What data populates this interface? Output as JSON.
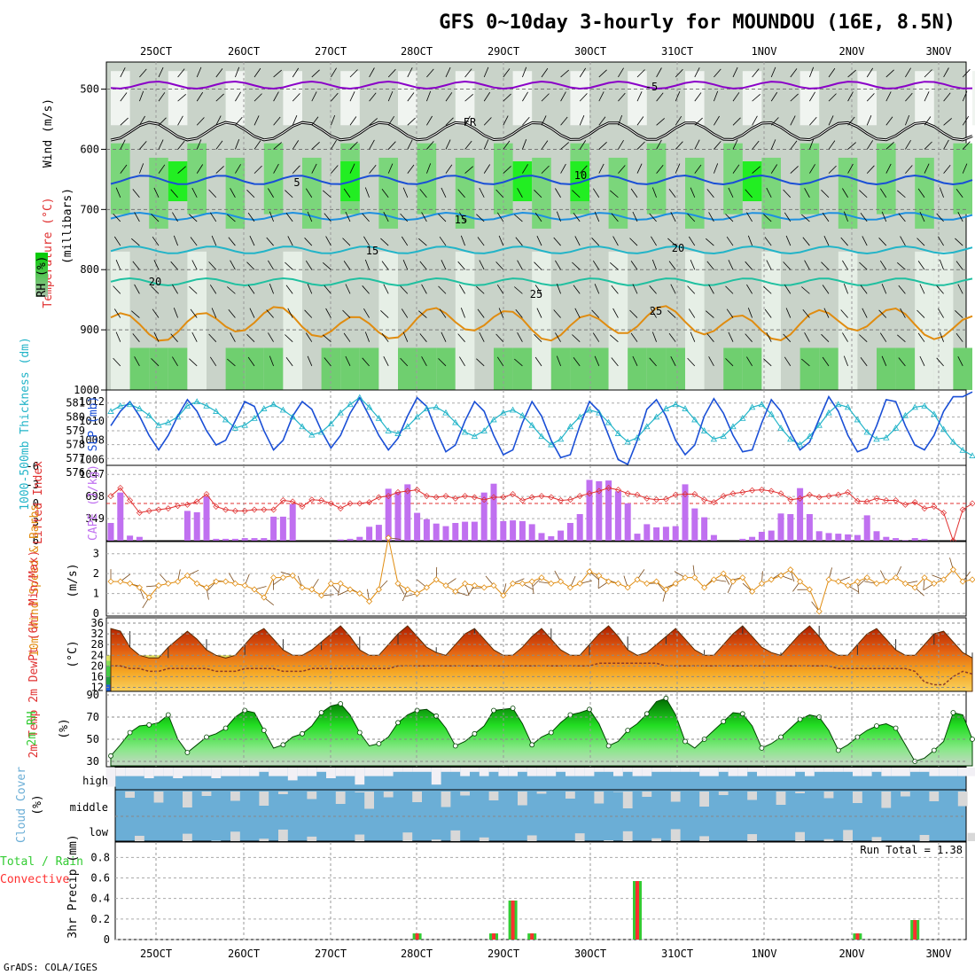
{
  "header": {
    "title": "GFS 0~10day 3-hourly for MOUNDOU (16E, 8.5N)",
    "footer": "GrADS: COLA/IGES"
  },
  "x_axis": {
    "date_labels": [
      "25OCT",
      "26OCT",
      "27OCT",
      "28OCT",
      "29OCT",
      "30OCT",
      "31OCT",
      "1NOV",
      "2NOV",
      "3NOV"
    ]
  },
  "colors": {
    "purple": "#8a00c8",
    "blue": "#1a4fd6",
    "cyan": "#22b4c8",
    "orange": "#e08c10",
    "red": "#e03030",
    "cape": "#c070f0",
    "green": "#33cc33",
    "cloud_blue": "#6baed6",
    "precip_red": "#ff3030",
    "precip_green": "#33cc33"
  },
  "panels": {
    "upper": {
      "vlabels": [
        "Wind (m/s)",
        "Temperature (°C)",
        "RH (%)"
      ],
      "ylabel": "(millibars)",
      "pressure_ticks": [
        "500",
        "600",
        "700",
        "800",
        "900",
        "1000"
      ],
      "contour_labels": [
        "-5",
        "FR",
        "5",
        "10",
        "15",
        "15",
        "20",
        "20",
        "25",
        "25"
      ]
    },
    "slp": {
      "left_label": "1000-500mb Thickness (dm)",
      "right_label": "SLP (mb)",
      "thick_ticks": [
        "581",
        "580",
        "579",
        "578",
        "577",
        "576"
      ],
      "slp_ticks": [
        "1012",
        "1010",
        "1008",
        "1006"
      ]
    },
    "cape": {
      "left_label": "Lifted Index",
      "right_label": "CAPE (J/kg)",
      "li_ticks": [
        "-6",
        "-3",
        "0",
        "3",
        "6"
      ],
      "cape_ticks": [
        "1047",
        "698",
        "349"
      ]
    },
    "wind10m": {
      "label": "10m Wind Speed & Barbs",
      "unit": "(m/s)",
      "ticks": [
        "3",
        "2",
        "1",
        "0"
      ]
    },
    "temp": {
      "label": "2m Temp 2m DewPt (6hr Min/Max)",
      "unit": "(°C)",
      "ticks": [
        "36",
        "32",
        "28",
        "24",
        "20",
        "16",
        "12"
      ]
    },
    "rh": {
      "label": "2m RH",
      "unit": "(%)",
      "ticks": [
        "90",
        "70",
        "50",
        "30"
      ]
    },
    "cloud": {
      "label": "Cloud Cover",
      "unit": "(%)",
      "levels": [
        "high",
        "middle",
        "low"
      ]
    },
    "precip": {
      "label_total": "Total / Rain",
      "label_conv": "Convective",
      "unit": "3hr Precip (mm)",
      "ticks": [
        "0.8",
        "0.6",
        "0.4",
        "0.2",
        "0"
      ],
      "run_total": "Run Total = 1.38"
    }
  },
  "chart_data": {
    "type": "line",
    "title": "GFS 0~10day 3-hourly for MOUNDOU (16E, 8.5N)",
    "x_start": "25OCT 00Z",
    "x_step_hours": 3,
    "thickness_dm": [
      580.4,
      580.8,
      580.9,
      580.6,
      580.1,
      579.4,
      579.6,
      580.0,
      580.8,
      581.1,
      580.8,
      580.4,
      579.8,
      579.2,
      579.4,
      579.9,
      580.6,
      580.9,
      580.5,
      580.0,
      579.3,
      578.7,
      578.9,
      579.5,
      580.3,
      580.9,
      581.4,
      580.7,
      579.9,
      579.0,
      578.8,
      579.3,
      580.0,
      580.6,
      580.7,
      580.3,
      579.6,
      578.9,
      578.6,
      579.0,
      579.8,
      580.3,
      580.5,
      580.1,
      579.4,
      578.6,
      578.0,
      578.4,
      579.3,
      580.0,
      580.5,
      580.3,
      579.6,
      578.8,
      578.2,
      578.5,
      579.3,
      580.0,
      580.6,
      580.9,
      580.6,
      579.8,
      579.0,
      578.4,
      578.6,
      579.3,
      579.9,
      580.7,
      580.9,
      580.2,
      579.2,
      578.4,
      578.0,
      578.6,
      579.4,
      580.3,
      580.9,
      580.7,
      579.8,
      578.9,
      578.4,
      578.5,
      579.2,
      580.1,
      580.7,
      580.8,
      580.2,
      579.1,
      578.2,
      577.6,
      577.2
    ],
    "slp_mb": [
      1009.5,
      1011.0,
      1012.0,
      1010.5,
      1008.5,
      1007.0,
      1008.5,
      1010.5,
      1012.2,
      1011.0,
      1009.0,
      1007.5,
      1008.0,
      1010.0,
      1012.0,
      1011.5,
      1009.0,
      1007.0,
      1008.0,
      1010.5,
      1012.0,
      1011.2,
      1009.0,
      1007.2,
      1008.5,
      1010.8,
      1012.4,
      1010.5,
      1008.5,
      1007.0,
      1008.2,
      1010.5,
      1012.4,
      1011.5,
      1009.0,
      1006.8,
      1007.5,
      1010.0,
      1012.0,
      1011.0,
      1008.5,
      1006.5,
      1007.0,
      1009.8,
      1012.0,
      1010.5,
      1008.0,
      1006.2,
      1006.5,
      1009.5,
      1012.0,
      1011.0,
      1008.5,
      1006.0,
      1005.5,
      1008.0,
      1011.2,
      1012.2,
      1010.5,
      1008.0,
      1006.5,
      1007.5,
      1010.5,
      1012.3,
      1010.8,
      1008.5,
      1006.8,
      1007.0,
      1009.8,
      1012.2,
      1011.0,
      1008.8,
      1007.0,
      1007.8,
      1010.2,
      1012.5,
      1011.0,
      1008.5,
      1006.8,
      1007.2,
      1009.5,
      1012.2,
      1012.0,
      1009.5,
      1007.5,
      1007.0,
      1008.5,
      1011.0,
      1012.5,
      1012.5,
      1013.0
    ],
    "cape_jkg": [
      280,
      760,
      80,
      60,
      0,
      0,
      0,
      0,
      470,
      450,
      700,
      30,
      30,
      30,
      40,
      40,
      40,
      380,
      380,
      580,
      0,
      0,
      0,
      0,
      20,
      30,
      60,
      220,
      250,
      820,
      770,
      890,
      440,
      340,
      270,
      230,
      280,
      300,
      300,
      760,
      900,
      310,
      320,
      310,
      260,
      120,
      70,
      160,
      280,
      420,
      960,
      940,
      950,
      780,
      590,
      110,
      260,
      210,
      220,
      230,
      890,
      510,
      370,
      90,
      0,
      0,
      30,
      60,
      140,
      160,
      430,
      420,
      830,
      420,
      150,
      120,
      110,
      100,
      90,
      400,
      150,
      60,
      40,
      10,
      40,
      30,
      0,
      0,
      0,
      0,
      0
    ],
    "lifted_index": [
      -1.2,
      -2.5,
      -0.5,
      1.5,
      1.2,
      1.0,
      0.8,
      0.4,
      0.2,
      -0.3,
      -1.5,
      0.5,
      1.0,
      1.2,
      1.2,
      1.0,
      1.0,
      1.0,
      -0.5,
      -0.3,
      0.5,
      -0.6,
      -0.5,
      0.0,
      0.8,
      0.0,
      0.0,
      -0.2,
      -1.0,
      -1.2,
      -1.8,
      -2.0,
      -2.2,
      -1.2,
      -1.0,
      -1.2,
      -0.8,
      -1.2,
      -1.0,
      -0.6,
      -1.0,
      -1.0,
      -1.5,
      -0.5,
      -1.0,
      -1.2,
      -1.0,
      -0.5,
      -0.6,
      -1.2,
      -1.6,
      -2.0,
      -2.5,
      -2.2,
      -1.6,
      -1.4,
      -0.8,
      -0.6,
      -0.7,
      -1.4,
      -1.5,
      -1.5,
      -0.6,
      -0.2,
      -1.2,
      -1.6,
      -1.8,
      -2.1,
      -2.2,
      -2.0,
      -1.6,
      -0.6,
      -0.8,
      -1.4,
      -1.0,
      -1.2,
      -1.4,
      -1.8,
      -0.4,
      -0.3,
      -0.8,
      -0.5,
      -0.5,
      0.2,
      -0.2,
      0.8,
      0.5,
      1.5,
      6.5,
      1.0,
      0.0
    ],
    "wind10m_ms": [
      1.6,
      1.6,
      1.5,
      1.3,
      0.8,
      1.4,
      1.5,
      1.6,
      1.9,
      1.5,
      1.3,
      1.6,
      1.6,
      1.5,
      1.4,
      1.2,
      0.8,
      1.8,
      1.8,
      1.9,
      1.3,
      1.2,
      0.9,
      1.5,
      1.5,
      1.2,
      1.0,
      0.6,
      1.2,
      3.8,
      1.5,
      1.2,
      1.0,
      1.3,
      1.7,
      1.4,
      1.1,
      1.5,
      1.4,
      1.3,
      1.4,
      0.9,
      1.5,
      1.5,
      1.6,
      1.8,
      1.5,
      1.6,
      1.3,
      1.5,
      2.1,
      1.9,
      1.6,
      1.5,
      1.3,
      1.7,
      1.5,
      1.6,
      1.2,
      1.5,
      1.8,
      1.8,
      1.3,
      1.7,
      2.0,
      1.6,
      1.8,
      1.1,
      1.5,
      1.7,
      1.9,
      2.2,
      1.6,
      1.2,
      0.1,
      1.7,
      1.6,
      1.4,
      1.6,
      1.8,
      1.5,
      1.6,
      1.8,
      1.5,
      1.3,
      1.8,
      1.5,
      1.7,
      2.2,
      1.6,
      1.7
    ],
    "temp2m_c": [
      34,
      33,
      27,
      24,
      23,
      23,
      27,
      30,
      33,
      30,
      26,
      24,
      23,
      24,
      28,
      32,
      34,
      30,
      26,
      24,
      24,
      26,
      29,
      32,
      35,
      31,
      26,
      24,
      24,
      28,
      32,
      35,
      31,
      27,
      25,
      24,
      28,
      32,
      34,
      30,
      26,
      24,
      24,
      27,
      31,
      34,
      30,
      26,
      24,
      24,
      28,
      32,
      35,
      31,
      26,
      24,
      25,
      28,
      31,
      34,
      30,
      26,
      24,
      24,
      28,
      32,
      35,
      31,
      27,
      25,
      24,
      28,
      32,
      35,
      31,
      26,
      24,
      24,
      28,
      32,
      34,
      30,
      26,
      24,
      24,
      28,
      32,
      33,
      29,
      25,
      23
    ],
    "dewpt2m_c": [
      20,
      20,
      19,
      19,
      18,
      18,
      19,
      19,
      19,
      19,
      19,
      18,
      18,
      18,
      19,
      19,
      19,
      19,
      18,
      18,
      18,
      19,
      19,
      19,
      19,
      19,
      19,
      19,
      19,
      19,
      20,
      20,
      20,
      20,
      20,
      20,
      20,
      20,
      20,
      20,
      20,
      20,
      20,
      20,
      20,
      20,
      20,
      20,
      20,
      20,
      20,
      21,
      21,
      21,
      21,
      21,
      21,
      21,
      20,
      20,
      20,
      20,
      20,
      20,
      20,
      20,
      20,
      20,
      20,
      20,
      20,
      20,
      20,
      20,
      20,
      20,
      19,
      19,
      19,
      19,
      19,
      19,
      19,
      19,
      18,
      14,
      13,
      13,
      16,
      18,
      17
    ],
    "rh2m_pct": [
      35,
      45,
      56,
      62,
      63,
      65,
      72,
      50,
      38,
      45,
      52,
      55,
      60,
      70,
      76,
      74,
      58,
      42,
      45,
      52,
      55,
      62,
      74,
      80,
      82,
      72,
      56,
      44,
      46,
      52,
      65,
      72,
      76,
      77,
      71,
      60,
      44,
      48,
      55,
      62,
      76,
      77,
      78,
      64,
      45,
      52,
      56,
      65,
      72,
      74,
      77,
      64,
      44,
      48,
      58,
      64,
      73,
      84,
      87,
      72,
      48,
      42,
      50,
      58,
      66,
      74,
      73,
      62,
      42,
      46,
      52,
      60,
      68,
      72,
      70,
      58,
      40,
      45,
      52,
      58,
      62,
      64,
      60,
      45,
      30,
      33,
      40,
      48,
      74,
      72,
      50
    ],
    "precip_mm": [
      0,
      0,
      0,
      0,
      0,
      0,
      0,
      0,
      0,
      0,
      0,
      0,
      0,
      0,
      0,
      0,
      0,
      0,
      0,
      0,
      0,
      0,
      0,
      0,
      0,
      0,
      0,
      0,
      0,
      0,
      0,
      0,
      0.06,
      0,
      0,
      0,
      0,
      0,
      0,
      0,
      0.06,
      0,
      0.38,
      0,
      0.06,
      0,
      0,
      0,
      0,
      0,
      0,
      0,
      0,
      0,
      0,
      0.57,
      0,
      0,
      0,
      0,
      0,
      0,
      0,
      0,
      0,
      0,
      0,
      0,
      0,
      0,
      0,
      0,
      0,
      0,
      0,
      0,
      0,
      0,
      0.06,
      0,
      0,
      0,
      0,
      0,
      0.19,
      0,
      0,
      0,
      0,
      0,
      0
    ],
    "cloud_high": [
      10,
      60,
      60,
      60,
      50,
      60,
      60,
      50,
      60,
      60,
      60,
      50,
      60,
      60,
      60,
      60,
      80,
      60,
      60,
      40,
      60,
      60,
      80,
      50,
      60,
      60,
      20,
      60,
      60,
      60,
      80,
      80,
      80,
      80,
      20,
      80,
      80,
      60,
      80,
      60,
      80,
      60,
      60,
      80,
      60,
      60,
      60,
      80,
      60,
      60,
      60,
      80,
      80,
      60,
      80,
      60,
      60,
      80,
      80,
      80,
      80,
      80,
      60,
      60,
      80,
      60,
      60,
      80,
      60,
      60,
      60,
      60,
      80,
      60,
      80,
      80,
      80,
      80,
      60,
      60,
      80,
      60,
      60,
      60,
      80,
      80,
      60,
      60,
      60,
      60,
      60
    ]
  }
}
